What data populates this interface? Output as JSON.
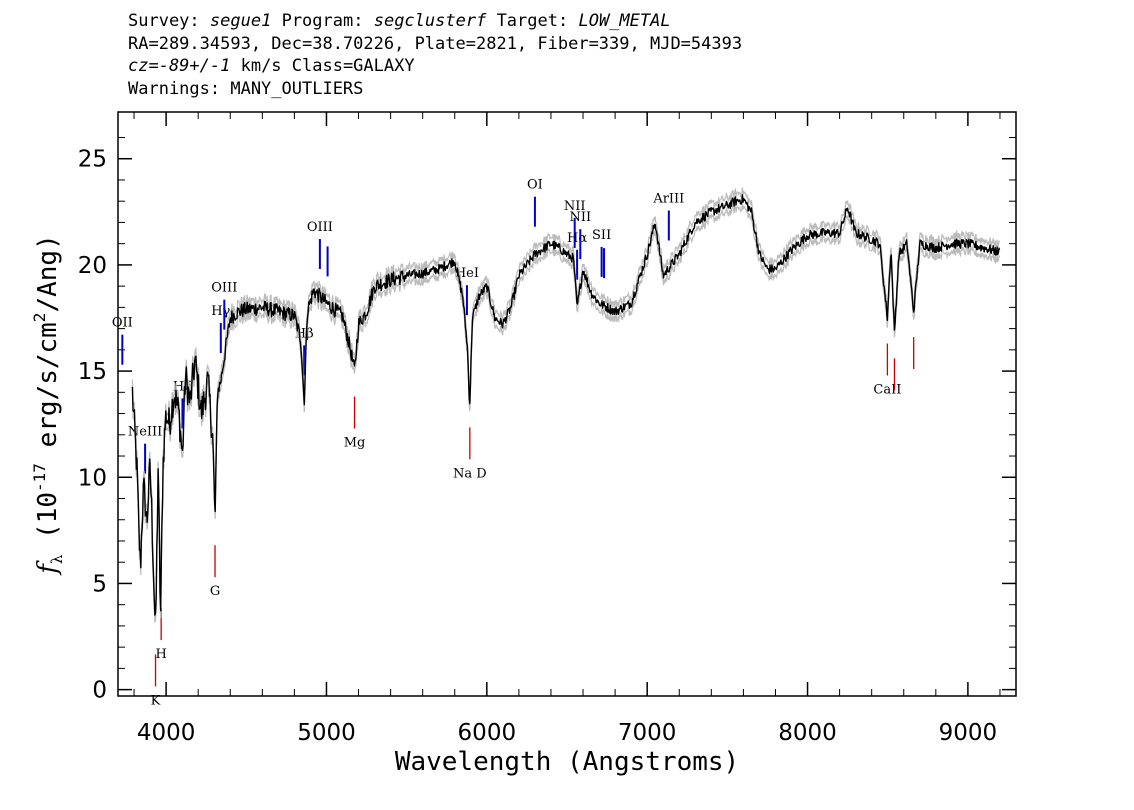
{
  "header": {
    "survey_key": "Survey:",
    "survey": "segue1",
    "program_key": "Program:",
    "program": "segclusterf",
    "target_key": "Target:",
    "target": "LOW_METAL",
    "coords": "RA=289.34593, Dec=38.70226, Plate=2821, Fiber=339, MJD=54393",
    "cz_value": "cz=-89+/-1",
    "cz_rest": " km/s Class=GALAXY",
    "warnings": "Warnings: MANY_OUTLIERS"
  },
  "chart_data": {
    "type": "line",
    "xlabel": "Wavelength (Angstroms)",
    "ylabel_parts": [
      "(10",
      "-17",
      " erg/s/cm",
      "2",
      "/Ang)"
    ],
    "xlim": [
      3700,
      9300
    ],
    "ylim": [
      -0.3,
      27.2
    ],
    "xticks": [
      4000,
      5000,
      6000,
      7000,
      8000,
      9000
    ],
    "yticks": [
      0,
      5,
      10,
      15,
      20,
      25
    ],
    "series": [
      {
        "color": "#000000",
        "error_color": "#bbbbbb",
        "x": [
          3790,
          3800,
          3810,
          3820,
          3830,
          3840,
          3850,
          3860,
          3870,
          3880,
          3890,
          3900,
          3910,
          3920,
          3930,
          3935,
          3940,
          3945,
          3950,
          3960,
          3965,
          3970,
          3980,
          3990,
          4000,
          4020,
          4050,
          4080,
          4102,
          4120,
          4150,
          4180,
          4220,
          4260,
          4290,
          4305,
          4320,
          4340,
          4360,
          4400,
          4450,
          4500,
          4600,
          4700,
          4800,
          4840,
          4861,
          4880,
          4920,
          5000,
          5100,
          5150,
          5175,
          5200,
          5250,
          5300,
          5400,
          5500,
          5600,
          5700,
          5800,
          5850,
          5880,
          5893,
          5910,
          5950,
          6000,
          6050,
          6100,
          6150,
          6200,
          6300,
          6400,
          6450,
          6500,
          6540,
          6563,
          6600,
          6650,
          6700,
          6800,
          6900,
          7000,
          7050,
          7100,
          7200,
          7300,
          7400,
          7500,
          7550,
          7600,
          7650,
          7700,
          7750,
          7800,
          7900,
          8000,
          8100,
          8200,
          8250,
          8300,
          8400,
          8450,
          8498,
          8520,
          8542,
          8570,
          8620,
          8662,
          8700,
          8800,
          8900,
          9000,
          9100,
          9200
        ],
        "y": [
          14.0,
          12.6,
          11.5,
          10.0,
          7.5,
          5.8,
          8.0,
          9.5,
          8.8,
          7.8,
          9.3,
          10.5,
          8.5,
          6.0,
          3.5,
          2.7,
          5.5,
          7.5,
          10.5,
          6.0,
          3.2,
          5.5,
          10.5,
          12.0,
          13.0,
          12.5,
          14.0,
          13.0,
          11.0,
          14.8,
          13.5,
          15.5,
          13.0,
          14.5,
          12.0,
          8.0,
          14.0,
          14.5,
          15.5,
          17.5,
          17.8,
          17.9,
          18.0,
          17.8,
          17.6,
          16.5,
          13.5,
          17.8,
          18.8,
          18.2,
          17.6,
          16.0,
          15.0,
          17.2,
          17.8,
          19.0,
          19.3,
          19.5,
          19.6,
          19.8,
          20.2,
          18.5,
          16.0,
          13.3,
          17.5,
          18.5,
          19.0,
          17.5,
          17.2,
          18.0,
          19.5,
          20.5,
          21.0,
          20.8,
          20.5,
          20.3,
          18.0,
          19.8,
          18.7,
          18.2,
          17.8,
          18.2,
          20.5,
          22.0,
          19.5,
          20.5,
          22.0,
          22.5,
          22.8,
          23.0,
          23.1,
          22.5,
          20.5,
          19.8,
          19.8,
          20.7,
          21.4,
          21.5,
          21.5,
          22.7,
          21.5,
          21.2,
          21.0,
          17.5,
          20.8,
          16.8,
          20.5,
          21.0,
          17.8,
          21.0,
          20.8,
          21.0,
          21.0,
          20.8,
          20.6
        ]
      }
    ],
    "line_ids": [
      {
        "label": "OII",
        "x": 3727,
        "kind": "emission"
      },
      {
        "label": "NeIII",
        "x": 3869,
        "kind": "emission"
      },
      {
        "label": "Hδ",
        "x": 4102,
        "kind": "emission"
      },
      {
        "label": "Hγ",
        "x": 4341,
        "kind": "emission"
      },
      {
        "label": "OIII",
        "x": 4363,
        "kind": "emission"
      },
      {
        "label": "Hβ",
        "x": 4861,
        "kind": "emission"
      },
      {
        "label": "OIII",
        "x": 4959,
        "kind": "emission"
      },
      {
        "label": "",
        "x": 5007,
        "kind": "emission"
      },
      {
        "label": "HeI",
        "x": 5876,
        "kind": "emission"
      },
      {
        "label": "OI",
        "x": 6300,
        "kind": "emission"
      },
      {
        "label": "NII",
        "x": 6548,
        "kind": "emission"
      },
      {
        "label": "Hα",
        "x": 6563,
        "kind": "emission"
      },
      {
        "label": "NII",
        "x": 6583,
        "kind": "emission"
      },
      {
        "label": "SII",
        "x": 6716,
        "kind": "emission"
      },
      {
        "label": "",
        "x": 6731,
        "kind": "emission"
      },
      {
        "label": "ArIII",
        "x": 7135,
        "kind": "emission"
      },
      {
        "label": "K",
        "x": 3934,
        "kind": "absorption"
      },
      {
        "label": "H",
        "x": 3969,
        "kind": "absorption"
      },
      {
        "label": "G",
        "x": 4305,
        "kind": "absorption"
      },
      {
        "label": "Mg",
        "x": 5175,
        "kind": "absorption"
      },
      {
        "label": "Na D",
        "x": 5894,
        "kind": "absorption"
      },
      {
        "label": "CaII",
        "x": 8498,
        "kind": "absorption"
      },
      {
        "label": "",
        "x": 8542,
        "kind": "absorption"
      },
      {
        "label": "",
        "x": 8662,
        "kind": "absorption"
      }
    ],
    "colors": {
      "emission": "#0000cc",
      "absorption": "#cc0000",
      "flux": "#000000",
      "error": "#bbbbbb"
    }
  }
}
